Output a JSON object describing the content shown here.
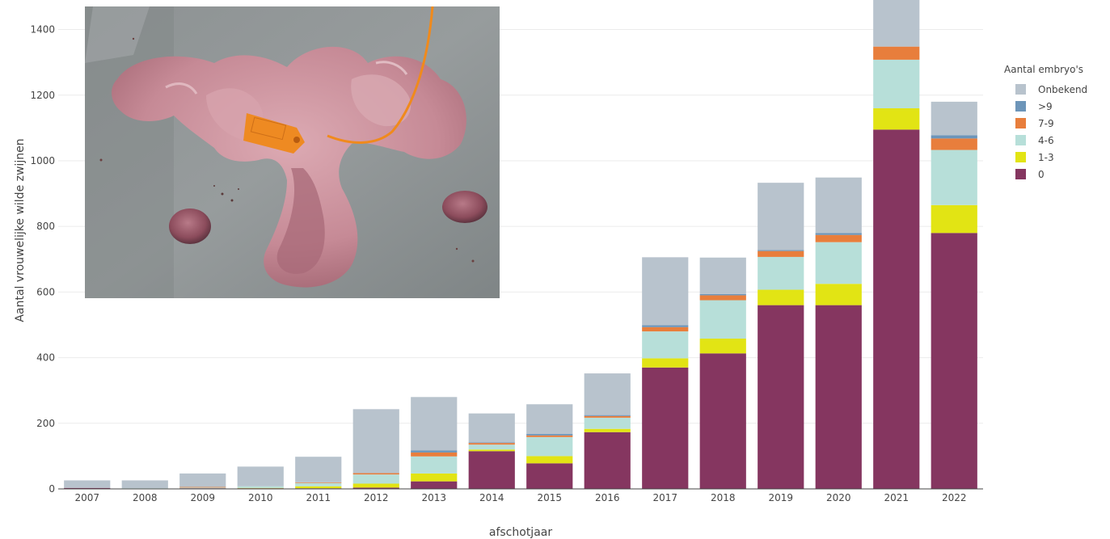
{
  "chart_data": {
    "type": "bar",
    "stacked": true,
    "categories": [
      "2007",
      "2008",
      "2009",
      "2010",
      "2011",
      "2012",
      "2013",
      "2014",
      "2015",
      "2016",
      "2017",
      "2018",
      "2019",
      "2020",
      "2021",
      "2022"
    ],
    "xlabel": "afschotjaar",
    "ylabel": "Aantal vrouwelijke wilde zwijnen",
    "ylim": [
      0,
      1490
    ],
    "yticks": [
      0,
      200,
      400,
      600,
      800,
      1000,
      1200,
      1400
    ],
    "grid": true,
    "legend": {
      "title": "Aantal embryo's",
      "placement": "right",
      "order": [
        "Onbekend",
        ">9",
        "7-9",
        "4-6",
        "1-3",
        "0"
      ]
    },
    "series": [
      {
        "name": "0",
        "color": "#853660",
        "values": [
          3,
          1,
          2,
          2,
          2,
          4,
          23,
          115,
          78,
          173,
          370,
          413,
          560,
          560,
          1095,
          780
        ]
      },
      {
        "name": "1-3",
        "color": "#e2e414",
        "values": [
          0,
          0,
          0,
          1,
          6,
          12,
          24,
          5,
          22,
          10,
          28,
          45,
          47,
          65,
          65,
          85
        ]
      },
      {
        "name": "4-6",
        "color": "#b7dfd9",
        "values": [
          0,
          1,
          2,
          5,
          10,
          28,
          52,
          15,
          58,
          34,
          82,
          117,
          100,
          127,
          148,
          168
        ]
      },
      {
        "name": "7-9",
        "color": "#e87e3c",
        "values": [
          0,
          0,
          2,
          0,
          2,
          4,
          12,
          5,
          5,
          5,
          13,
          15,
          18,
          22,
          40,
          35
        ]
      },
      {
        "name": ">9",
        "color": "#6d95b9",
        "values": [
          0,
          0,
          0,
          0,
          0,
          0,
          6,
          2,
          5,
          3,
          6,
          4,
          3,
          6,
          0,
          10
        ]
      },
      {
        "name": "Onbekend",
        "color": "#b8c3cd",
        "values": [
          23,
          24,
          41,
          60,
          78,
          195,
          163,
          88,
          90,
          127,
          207,
          111,
          205,
          169,
          200,
          102
        ]
      }
    ]
  }
}
